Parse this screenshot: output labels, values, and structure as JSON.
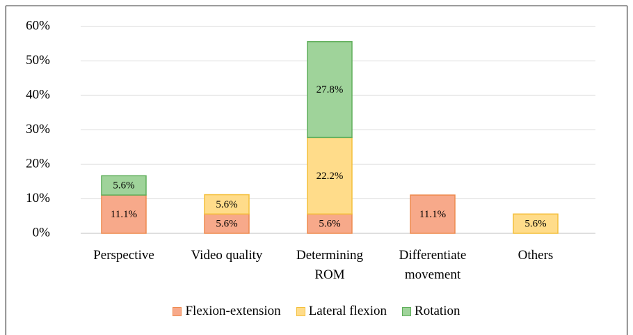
{
  "chart_data": {
    "type": "stacked_bar",
    "categories": [
      "Perspective",
      "Video quality",
      "Determining ROM",
      "Differentiate movement",
      "Others"
    ],
    "series": [
      {
        "name": "Flexion-extension",
        "color": "#f7a98a",
        "stroke": "#ee8a4e",
        "values": [
          11.1,
          5.6,
          5.6,
          11.1,
          null
        ],
        "value_labels": [
          "11.1%",
          "5.6%",
          "5.6%",
          "11.1%",
          null
        ]
      },
      {
        "name": "Lateral flexion",
        "color": "#ffdc8a",
        "stroke": "#f4bf3a",
        "values": [
          null,
          5.6,
          22.2,
          null,
          5.6
        ],
        "value_labels": [
          null,
          "5.6%",
          "22.2%",
          null,
          "5.6%"
        ]
      },
      {
        "name": "Rotation",
        "color": "#9fd39a",
        "stroke": "#5fae5a",
        "values": [
          5.6,
          null,
          27.8,
          null,
          null
        ],
        "value_labels": [
          "5.6%",
          null,
          "27.8%",
          null,
          null
        ]
      }
    ],
    "ylim": [
      0,
      60
    ],
    "yticks": [
      {
        "value": 0,
        "label": "0%"
      },
      {
        "value": 10,
        "label": "10%"
      },
      {
        "value": 20,
        "label": "20%"
      },
      {
        "value": 30,
        "label": "30%"
      },
      {
        "value": 40,
        "label": "40%"
      },
      {
        "value": 50,
        "label": "50%"
      },
      {
        "value": 60,
        "label": "60%"
      }
    ],
    "grid": true,
    "legend": "bottom"
  }
}
